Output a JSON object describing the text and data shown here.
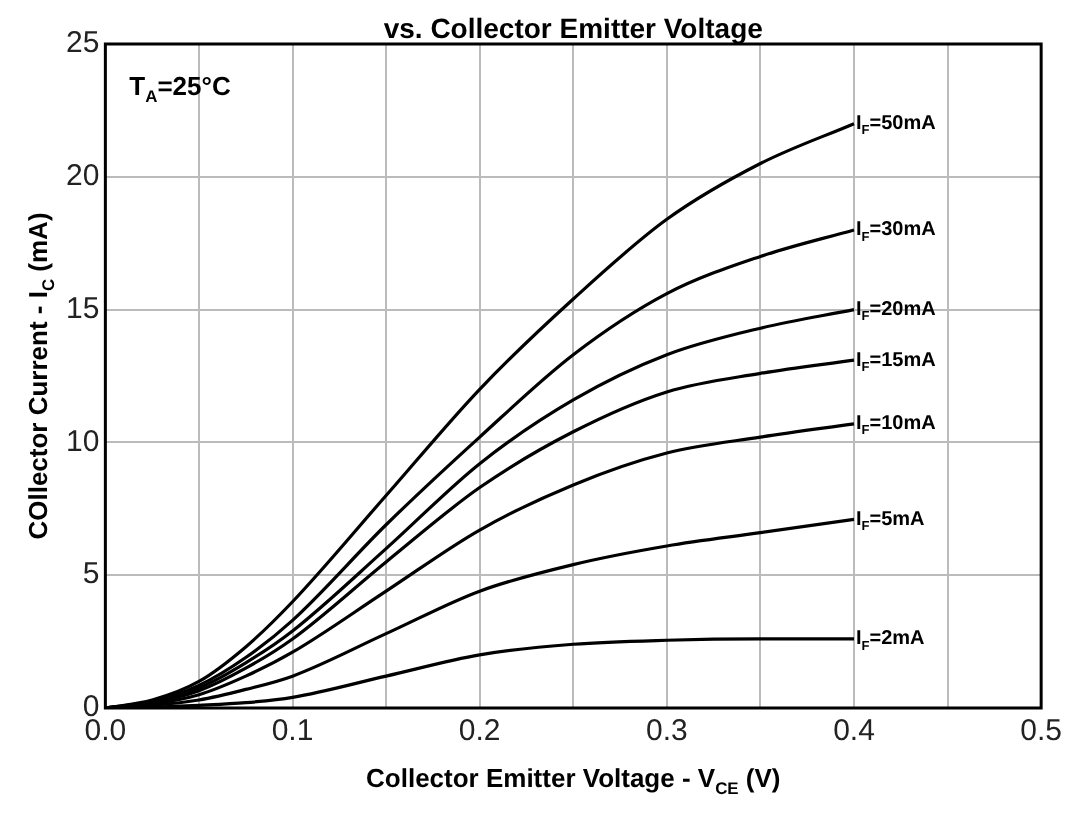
{
  "chart_data": {
    "type": "line",
    "title": "vs. Collector Emitter Voltage",
    "xlabel": "Collector Emitter Voltage - V$_{CE}$ (V)",
    "ylabel": "COllector Current - I$_{C}$ (mA)",
    "annotations": [
      "T$_{A}$=25°C"
    ],
    "x": [
      0,
      0.025,
      0.05,
      0.075,
      0.1,
      0.15,
      0.2,
      0.25,
      0.3,
      0.35,
      0.4
    ],
    "series": [
      {
        "name": "I$_{F}$=50mA",
        "color": "#000000",
        "values": [
          0,
          0.3,
          1.0,
          2.3,
          4.0,
          8.0,
          12.0,
          15.4,
          18.4,
          20.5,
          22.0
        ]
      },
      {
        "name": "I$_{F}$=30mA",
        "color": "#000000",
        "values": [
          0,
          0.25,
          0.85,
          1.9,
          3.3,
          6.9,
          10.2,
          13.3,
          15.6,
          17.0,
          18.0
        ]
      },
      {
        "name": "I$_{F}$=20mA",
        "color": "#000000",
        "values": [
          0,
          0.2,
          0.75,
          1.7,
          2.9,
          6.0,
          9.2,
          11.6,
          13.3,
          14.3,
          15.0
        ]
      },
      {
        "name": "I$_{F}$=15mA",
        "color": "#000000",
        "values": [
          0,
          0.2,
          0.65,
          1.5,
          2.6,
          5.5,
          8.3,
          10.4,
          11.9,
          12.6,
          13.1
        ]
      },
      {
        "name": "I$_{F}$=10mA",
        "color": "#000000",
        "values": [
          0,
          0.15,
          0.5,
          1.2,
          2.1,
          4.4,
          6.7,
          8.4,
          9.6,
          10.2,
          10.7
        ]
      },
      {
        "name": "I$_{F}$=5mA",
        "color": "#000000",
        "values": [
          0,
          0.1,
          0.3,
          0.7,
          1.2,
          2.8,
          4.4,
          5.4,
          6.1,
          6.6,
          7.1
        ]
      },
      {
        "name": "I$_{F}$=2mA",
        "color": "#000000",
        "values": [
          0,
          0.03,
          0.1,
          0.2,
          0.4,
          1.2,
          2.0,
          2.4,
          2.55,
          2.6,
          2.6
        ]
      }
    ],
    "xlim": [
      0,
      0.5
    ],
    "xticks": [
      {
        "value": 0,
        "label": "0.0"
      },
      {
        "value": 0.05,
        "label": null
      },
      0.1,
      {
        "value": 0.15,
        "label": null
      },
      0.2,
      {
        "value": 0.25,
        "label": null
      },
      0.3,
      {
        "value": 0.35,
        "label": null
      },
      0.4,
      {
        "value": 0.45,
        "label": null
      },
      0.5
    ],
    "ylim": [
      0,
      25
    ],
    "yticks": [
      0,
      5,
      10,
      15,
      20,
      25
    ],
    "grid": true,
    "legend": false,
    "marker": "none",
    "line_style": "solid"
  }
}
